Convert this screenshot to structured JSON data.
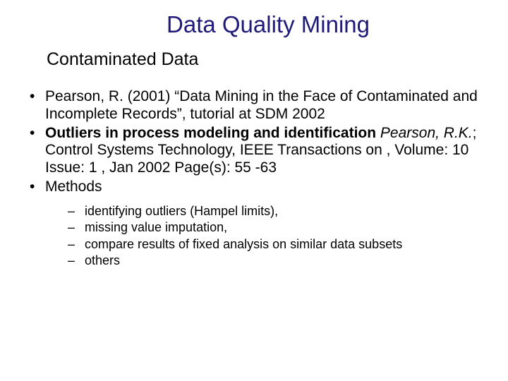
{
  "title": {
    "text": "Data Quality Mining",
    "color": "#1f1a7a",
    "fontsize": 33
  },
  "subtitle": {
    "text": "Contaminated Data",
    "color": "#000000",
    "fontsize": 25
  },
  "body": {
    "color": "#000000",
    "fontsize": 21,
    "line_height": 1.18
  },
  "sub": {
    "fontsize": 18,
    "line_height": 1.25
  },
  "bullets": [
    {
      "text": "Pearson, R. (2001) “Data Mining in the Face of Contaminated and Incomplete Records”, tutorial at SDM 2002"
    },
    {
      "bold": "Outliers in process modeling and identification",
      "italic_after": "Pearson, R.K.",
      "rest": "; Control Systems Technology, IEEE Transactions on , Volume: 10 Issue: 1 , Jan 2002 Page(s): 55 -63"
    },
    {
      "text": "Methods"
    }
  ],
  "dashes": [
    "identifying outliers (Hampel limits),",
    "missing value imputation,",
    "compare results of fixed analysis on similar data subsets",
    "others"
  ]
}
